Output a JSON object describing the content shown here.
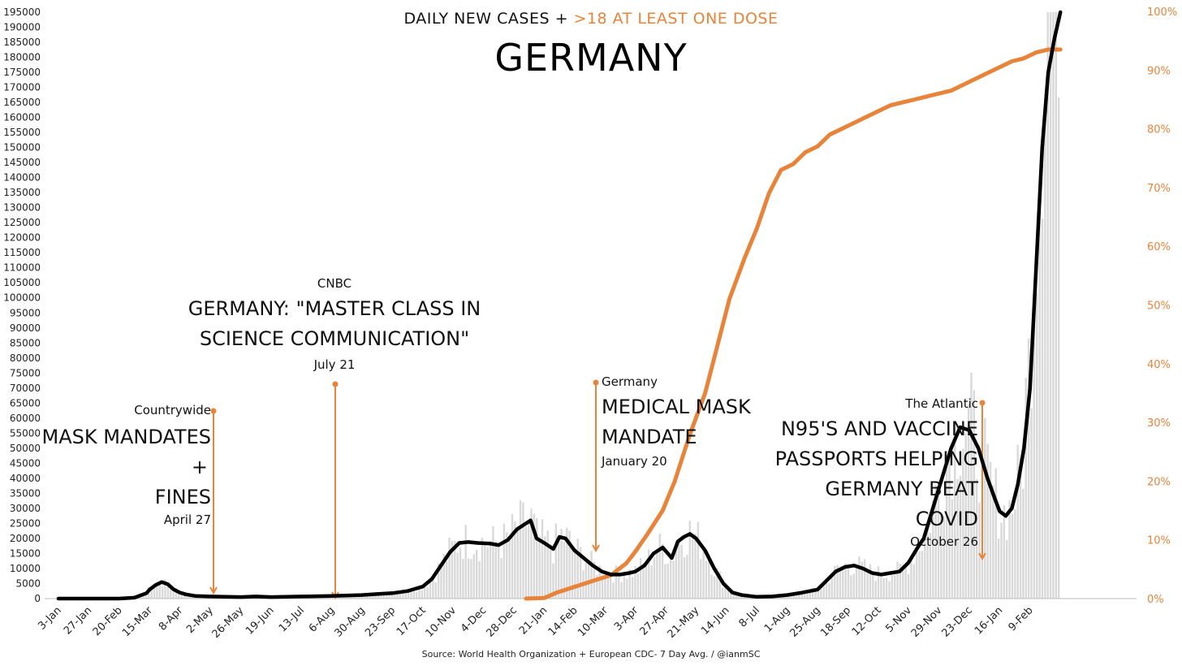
{
  "chart_data": {
    "type": "line",
    "title": "GERMANY",
    "subtitle_part1": "DAILY NEW CASES + ",
    "subtitle_part2": ">18 AT LEAST ONE DOSE",
    "source": "Source: World Health Organization + European CDC- 7 Day Avg. / @ianmSC",
    "x_tick_labels": [
      "3-Jan",
      "27-Jan",
      "20-Feb",
      "15-Mar",
      "8-Apr",
      "2-May",
      "26-May",
      "19-Jun",
      "13-Jul",
      "6-Aug",
      "30-Aug",
      "23-Sep",
      "17-Oct",
      "10-Nov",
      "4-Dec",
      "28-Dec",
      "21-Jan",
      "14-Feb",
      "10-Mar",
      "3-Apr",
      "27-Apr",
      "21-May",
      "14-Jun",
      "8-Jul",
      "1-Aug",
      "25-Aug",
      "18-Sep",
      "12-Oct",
      "5-Nov",
      "29-Nov",
      "23-Dec",
      "16-Jan",
      "9-Feb"
    ],
    "y_left": {
      "min": 0,
      "max": 195000,
      "step": 5000
    },
    "y_right": {
      "min": 0,
      "max": 100,
      "step": 10,
      "suffix": "%"
    },
    "colors": {
      "cases": "#000000",
      "vaccine": "#e8833a",
      "bars": "#d9d9d9",
      "arrow": "#e8833a"
    },
    "series": [
      {
        "name": "DAILY NEW CASES",
        "axis": "left",
        "points": [
          [
            0,
            0
          ],
          [
            2,
            0
          ],
          [
            2.5,
            300
          ],
          [
            2.9,
            1800
          ],
          [
            3.0,
            3000
          ],
          [
            3.2,
            4500
          ],
          [
            3.4,
            5500
          ],
          [
            3.6,
            4800
          ],
          [
            3.8,
            3000
          ],
          [
            4.0,
            2000
          ],
          [
            4.2,
            1400
          ],
          [
            4.5,
            900
          ],
          [
            5,
            700
          ],
          [
            6,
            500
          ],
          [
            6.5,
            700
          ],
          [
            7,
            500
          ],
          [
            8,
            700
          ],
          [
            9,
            900
          ],
          [
            10,
            1200
          ],
          [
            10.5,
            1500
          ],
          [
            11,
            1800
          ],
          [
            11.5,
            2500
          ],
          [
            12,
            4000
          ],
          [
            12.3,
            6500
          ],
          [
            12.6,
            11000
          ],
          [
            12.9,
            15500
          ],
          [
            13.2,
            18500
          ],
          [
            13.5,
            18800
          ],
          [
            13.8,
            18500
          ],
          [
            14.2,
            18300
          ],
          [
            14.5,
            17800
          ],
          [
            14.8,
            19500
          ],
          [
            15.1,
            23000
          ],
          [
            15.4,
            25000
          ],
          [
            15.55,
            26000
          ],
          [
            15.75,
            20000
          ],
          [
            16.0,
            18500
          ],
          [
            16.3,
            16500
          ],
          [
            16.5,
            20500
          ],
          [
            16.7,
            20000
          ],
          [
            17.0,
            16000
          ],
          [
            17.3,
            13500
          ],
          [
            17.6,
            11000
          ],
          [
            17.9,
            9000
          ],
          [
            18.2,
            8000
          ],
          [
            18.5,
            8000
          ],
          [
            18.8,
            8500
          ],
          [
            19.0,
            9000
          ],
          [
            19.3,
            11000
          ],
          [
            19.6,
            15000
          ],
          [
            19.9,
            17000
          ],
          [
            20.2,
            13500
          ],
          [
            20.4,
            19000
          ],
          [
            20.6,
            20500
          ],
          [
            20.8,
            21500
          ],
          [
            21.0,
            20000
          ],
          [
            21.3,
            16000
          ],
          [
            21.6,
            10000
          ],
          [
            21.9,
            5000
          ],
          [
            22.2,
            2000
          ],
          [
            22.5,
            1200
          ],
          [
            23,
            600
          ],
          [
            23.5,
            700
          ],
          [
            24,
            1200
          ],
          [
            24.5,
            2000
          ],
          [
            25,
            3000
          ],
          [
            25.3,
            6000
          ],
          [
            25.6,
            9000
          ],
          [
            25.9,
            10500
          ],
          [
            26.2,
            11000
          ],
          [
            26.5,
            10000
          ],
          [
            26.8,
            8500
          ],
          [
            27.1,
            8000
          ],
          [
            27.4,
            8500
          ],
          [
            27.7,
            9000
          ],
          [
            28.0,
            12000
          ],
          [
            28.3,
            17000
          ],
          [
            28.5,
            20000
          ],
          [
            28.8,
            30000
          ],
          [
            29.1,
            40000
          ],
          [
            29.4,
            50000
          ],
          [
            29.7,
            57000
          ],
          [
            30.0,
            56000
          ],
          [
            30.3,
            50000
          ],
          [
            30.6,
            40000
          ],
          [
            30.85,
            33000
          ],
          [
            31.0,
            29000
          ],
          [
            31.2,
            27500
          ],
          [
            31.4,
            30000
          ],
          [
            31.6,
            38000
          ],
          [
            31.8,
            50000
          ],
          [
            32.0,
            70000
          ],
          [
            32.2,
            110000
          ],
          [
            32.4,
            150000
          ],
          [
            32.6,
            175000
          ],
          [
            32.8,
            186000
          ],
          [
            33.0,
            195000
          ]
        ]
      },
      {
        "name": ">18 AT LEAST ONE DOSE",
        "axis": "right",
        "points": [
          [
            15.4,
            0
          ],
          [
            16.0,
            0.1
          ],
          [
            16.4,
            1
          ],
          [
            17.0,
            2
          ],
          [
            17.6,
            3
          ],
          [
            18.2,
            4
          ],
          [
            18.7,
            6
          ],
          [
            19.0,
            8
          ],
          [
            19.4,
            11
          ],
          [
            19.9,
            15
          ],
          [
            20.3,
            20
          ],
          [
            20.8,
            28
          ],
          [
            21.3,
            35
          ],
          [
            21.7,
            43
          ],
          [
            22.1,
            51
          ],
          [
            22.6,
            58
          ],
          [
            23.0,
            63
          ],
          [
            23.4,
            69
          ],
          [
            23.8,
            73
          ],
          [
            24.2,
            74
          ],
          [
            24.6,
            76
          ],
          [
            25.0,
            77
          ],
          [
            25.4,
            79
          ],
          [
            25.8,
            80
          ],
          [
            26.2,
            81
          ],
          [
            26.6,
            82
          ],
          [
            27.0,
            83
          ],
          [
            27.4,
            84
          ],
          [
            27.8,
            84.5
          ],
          [
            28.2,
            85
          ],
          [
            28.6,
            85.5
          ],
          [
            29.0,
            86
          ],
          [
            29.4,
            86.5
          ],
          [
            29.8,
            87.5
          ],
          [
            30.2,
            88.5
          ],
          [
            30.6,
            89.5
          ],
          [
            31.0,
            90.5
          ],
          [
            31.4,
            91.5
          ],
          [
            31.8,
            92
          ],
          [
            32.2,
            93
          ],
          [
            32.6,
            93.5
          ],
          [
            33.0,
            93.5
          ]
        ]
      }
    ],
    "annotations": [
      {
        "source": "Countrywide",
        "text": [
          "MASK MANDATES",
          "+",
          "FINES"
        ],
        "date": "April 27"
      },
      {
        "source": "CNBC",
        "text": [
          "GERMANY: \"MASTER CLASS IN",
          "SCIENCE COMMUNICATION\""
        ],
        "date": "July 21"
      },
      {
        "source": "Germany",
        "text": [
          "MEDICAL MASK",
          "MANDATE"
        ],
        "date": "January 20"
      },
      {
        "source": "The Atlantic",
        "text": [
          "N95'S AND VACCINE",
          "PASSPORTS HELPING",
          "GERMANY BEAT",
          "COVID"
        ],
        "date": "October 26"
      }
    ]
  }
}
